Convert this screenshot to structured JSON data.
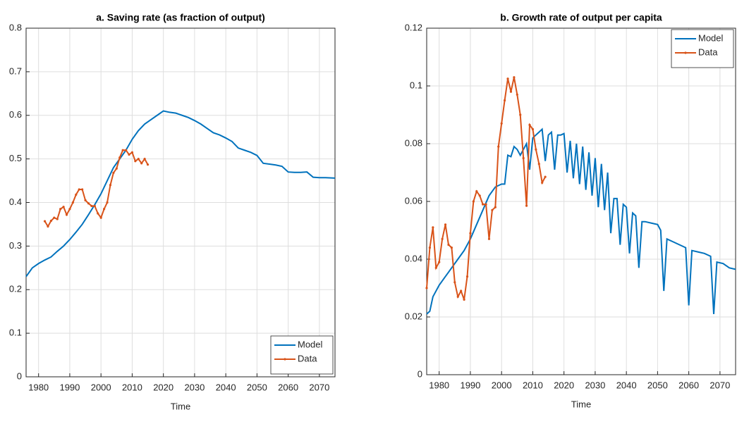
{
  "chart_data": [
    {
      "type": "line",
      "title": "a. Saving rate (as fraction of output)",
      "xlabel": "Time",
      "xlim": [
        1976,
        2075
      ],
      "xticks": [
        1980,
        1990,
        2000,
        2010,
        2020,
        2030,
        2040,
        2050,
        2060,
        2070
      ],
      "ylim": [
        0,
        0.8
      ],
      "yticks": [
        0,
        0.1,
        0.2,
        0.3,
        0.4,
        0.5,
        0.6,
        0.7,
        0.8
      ],
      "grid": true,
      "legend": "lower right",
      "series": [
        {
          "name": "Model",
          "color": "#0072bd",
          "x": [
            1976,
            1978,
            1980,
            1982,
            1984,
            1986,
            1988,
            1990,
            1992,
            1994,
            1996,
            1998,
            2000,
            2002,
            2004,
            2006,
            2008,
            2010,
            2012,
            2014,
            2016,
            2018,
            2020,
            2022,
            2024,
            2026,
            2028,
            2030,
            2032,
            2034,
            2036,
            2038,
            2040,
            2042,
            2044,
            2046,
            2048,
            2050,
            2052,
            2054,
            2056,
            2058,
            2060,
            2062,
            2064,
            2066,
            2068,
            2070,
            2072,
            2075
          ],
          "values": [
            0.23,
            0.25,
            0.26,
            0.268,
            0.275,
            0.288,
            0.3,
            0.315,
            0.332,
            0.35,
            0.372,
            0.395,
            0.42,
            0.45,
            0.48,
            0.5,
            0.52,
            0.545,
            0.565,
            0.58,
            0.59,
            0.6,
            0.61,
            0.607,
            0.605,
            0.6,
            0.595,
            0.588,
            0.58,
            0.57,
            0.56,
            0.555,
            0.548,
            0.54,
            0.525,
            0.52,
            0.515,
            0.508,
            0.49,
            0.488,
            0.486,
            0.483,
            0.47,
            0.469,
            0.469,
            0.47,
            0.458,
            0.457,
            0.457,
            0.456
          ]
        },
        {
          "name": "Data",
          "color": "#d95319",
          "marker": "dot",
          "x": [
            1982,
            1983,
            1984,
            1985,
            1986,
            1987,
            1988,
            1989,
            1990,
            1991,
            1992,
            1993,
            1994,
            1995,
            1996,
            1997,
            1998,
            1999,
            2000,
            2001,
            2002,
            2003,
            2004,
            2005,
            2006,
            2007,
            2008,
            2009,
            2010,
            2011,
            2012,
            2013,
            2014,
            2015
          ],
          "values": [
            0.357,
            0.345,
            0.358,
            0.365,
            0.362,
            0.385,
            0.39,
            0.372,
            0.385,
            0.4,
            0.418,
            0.43,
            0.43,
            0.405,
            0.398,
            0.392,
            0.392,
            0.375,
            0.365,
            0.385,
            0.4,
            0.44,
            0.468,
            0.478,
            0.503,
            0.52,
            0.52,
            0.51,
            0.515,
            0.495,
            0.5,
            0.49,
            0.5,
            0.487
          ]
        }
      ]
    },
    {
      "type": "line",
      "title": "b. Growth rate of output per capita",
      "xlabel": "Time",
      "xlim": [
        1976,
        2075
      ],
      "xticks": [
        1980,
        1990,
        2000,
        2010,
        2020,
        2030,
        2040,
        2050,
        2060,
        2070
      ],
      "ylim": [
        0,
        0.12
      ],
      "yticks": [
        0,
        0.02,
        0.04,
        0.06,
        0.08,
        0.1,
        0.12
      ],
      "grid": true,
      "legend": "upper right",
      "series": [
        {
          "name": "Model",
          "color": "#0072bd",
          "x": [
            1976,
            1977,
            1978,
            1980,
            1982,
            1984,
            1986,
            1988,
            1990,
            1992,
            1994,
            1996,
            1998,
            2000,
            2001,
            2002,
            2003,
            2004,
            2005,
            2006,
            2007,
            2008,
            2009,
            2010,
            2011,
            2012,
            2013,
            2014,
            2015,
            2016,
            2017,
            2018,
            2019,
            2020,
            2021,
            2022,
            2023,
            2024,
            2025,
            2026,
            2027,
            2028,
            2029,
            2030,
            2031,
            2032,
            2033,
            2034,
            2035,
            2036,
            2037,
            2038,
            2039,
            2040,
            2041,
            2042,
            2043,
            2044,
            2045,
            2046,
            2048,
            2050,
            2051,
            2052,
            2053,
            2055,
            2057,
            2059,
            2060,
            2061,
            2063,
            2065,
            2067,
            2068,
            2069,
            2071,
            2073,
            2075
          ],
          "values": [
            0.021,
            0.022,
            0.027,
            0.031,
            0.034,
            0.037,
            0.04,
            0.043,
            0.047,
            0.052,
            0.057,
            0.062,
            0.065,
            0.066,
            0.066,
            0.076,
            0.0755,
            0.079,
            0.078,
            0.076,
            0.078,
            0.08,
            0.071,
            0.082,
            0.083,
            0.084,
            0.085,
            0.074,
            0.083,
            0.084,
            0.071,
            0.083,
            0.083,
            0.0835,
            0.07,
            0.081,
            0.068,
            0.08,
            0.066,
            0.079,
            0.064,
            0.077,
            0.062,
            0.075,
            0.058,
            0.073,
            0.057,
            0.07,
            0.049,
            0.061,
            0.061,
            0.045,
            0.059,
            0.058,
            0.042,
            0.056,
            0.055,
            0.037,
            0.053,
            0.053,
            0.0525,
            0.052,
            0.05,
            0.029,
            0.047,
            0.046,
            0.045,
            0.044,
            0.024,
            0.043,
            0.0425,
            0.042,
            0.041,
            0.021,
            0.039,
            0.0385,
            0.037,
            0.0365
          ]
        },
        {
          "name": "Data",
          "color": "#d95319",
          "marker": "dot",
          "x": [
            1976,
            1977,
            1978,
            1979,
            1980,
            1981,
            1982,
            1983,
            1984,
            1985,
            1986,
            1987,
            1988,
            1989,
            1990,
            1991,
            1992,
            1993,
            1994,
            1995,
            1996,
            1997,
            1998,
            1999,
            2000,
            2001,
            2002,
            2003,
            2004,
            2005,
            2006,
            2007,
            2008,
            2009,
            2010,
            2011,
            2012,
            2013,
            2014
          ],
          "values": [
            0.03,
            0.044,
            0.051,
            0.037,
            0.039,
            0.047,
            0.052,
            0.045,
            0.044,
            0.032,
            0.027,
            0.029,
            0.026,
            0.034,
            0.049,
            0.06,
            0.0635,
            0.062,
            0.059,
            0.059,
            0.047,
            0.057,
            0.058,
            0.079,
            0.087,
            0.095,
            0.1025,
            0.098,
            0.103,
            0.097,
            0.09,
            0.075,
            0.0585,
            0.0865,
            0.085,
            0.078,
            0.073,
            0.0665,
            0.0685
          ]
        }
      ]
    }
  ]
}
